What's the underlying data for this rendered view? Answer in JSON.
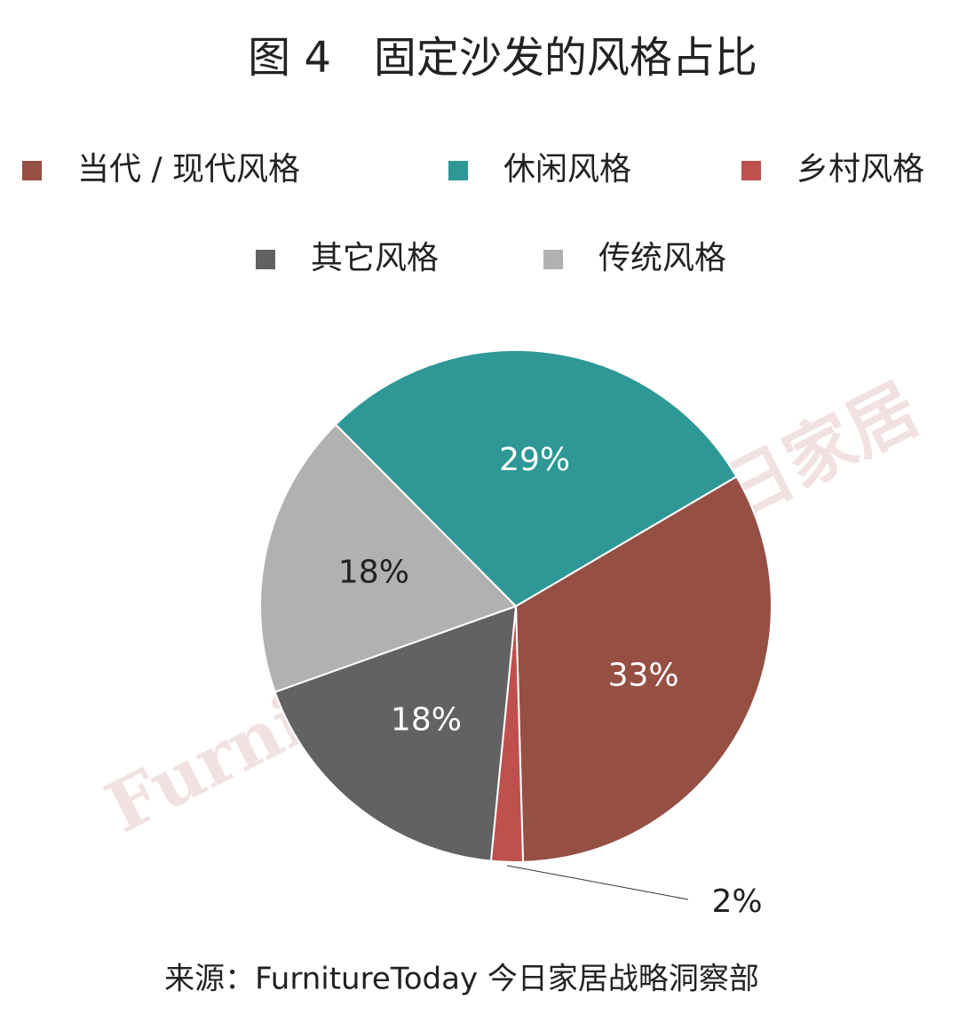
{
  "chart_data": {
    "type": "pie",
    "title": "图 4　固定沙发的风格占比",
    "categories": [
      "当代 / 现代风格",
      "休闲风格",
      "乡村风格",
      "其它风格",
      "传统风格"
    ],
    "values": [
      33,
      29,
      2,
      18,
      18
    ],
    "value_labels": [
      "33%",
      "29%",
      "2%",
      "18%",
      "18%"
    ],
    "colors": [
      "#954f43",
      "#2e9896",
      "#c0504d",
      "#616264",
      "#b0b1b0"
    ],
    "legend": "top",
    "source": "来源：FurnitureToday 今日家居战略洞察部",
    "watermark": "FurnitureToday 今日家居"
  }
}
